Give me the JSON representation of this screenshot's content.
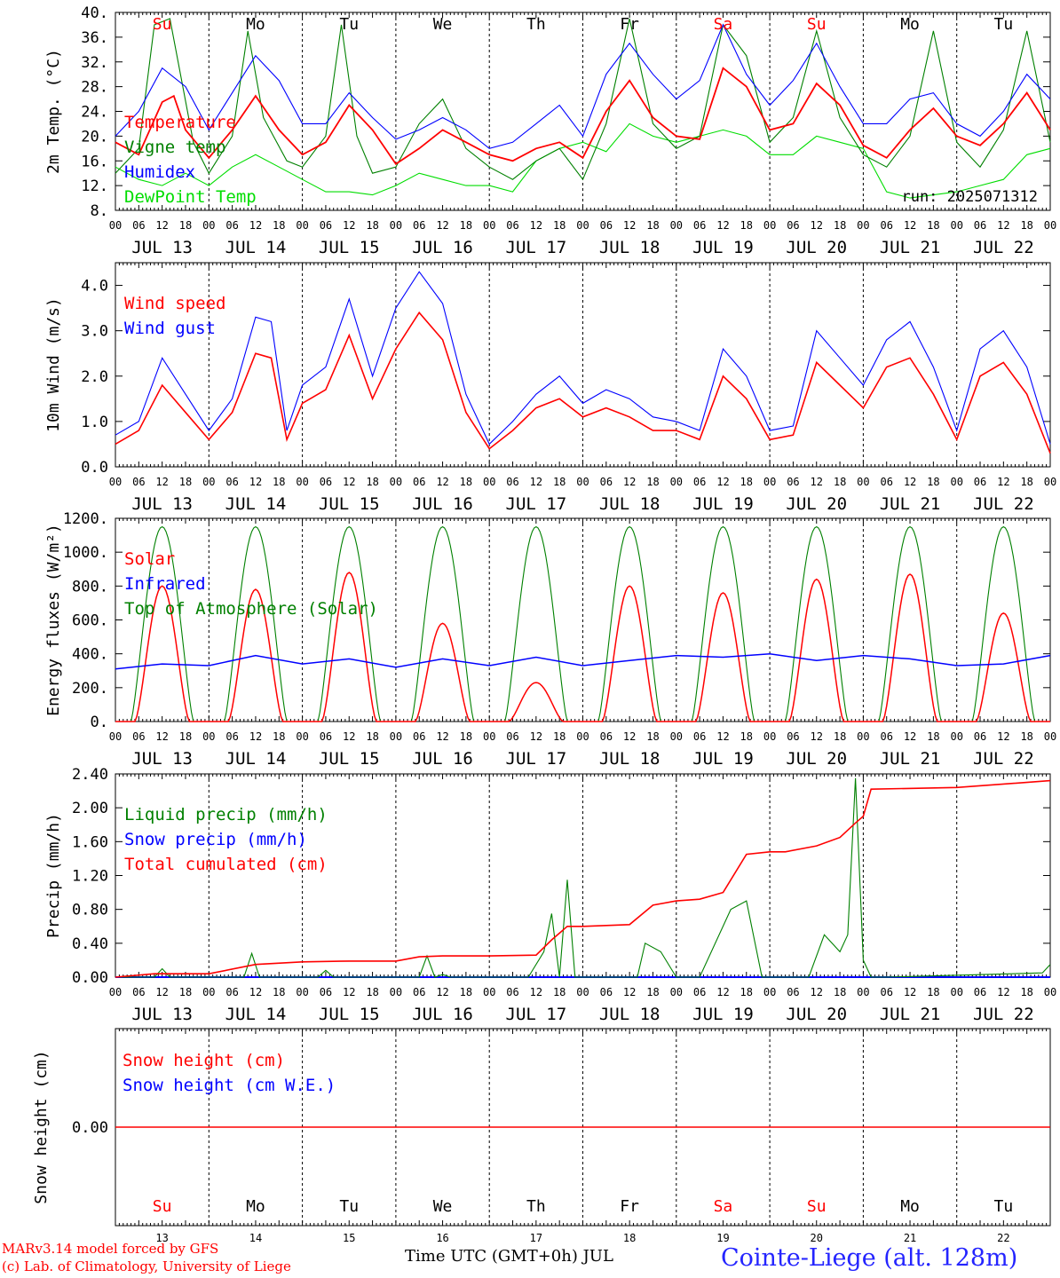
{
  "x_tick_hours": [
    "00",
    "06",
    "12",
    "18"
  ],
  "x_end_tick": "00",
  "days": [
    {
      "date": "JUL 13",
      "dow": "Su",
      "day": "13",
      "weekend": true
    },
    {
      "date": "JUL 14",
      "dow": "Mo",
      "day": "14",
      "weekend": false
    },
    {
      "date": "JUL 15",
      "dow": "Tu",
      "day": "15",
      "weekend": false
    },
    {
      "date": "JUL 16",
      "dow": "We",
      "day": "16",
      "weekend": false
    },
    {
      "date": "JUL 17",
      "dow": "Th",
      "day": "17",
      "weekend": false
    },
    {
      "date": "JUL 18",
      "dow": "Fr",
      "day": "18",
      "weekend": false
    },
    {
      "date": "JUL 19",
      "dow": "Sa",
      "day": "19",
      "weekend": true
    },
    {
      "date": "JUL 20",
      "dow": "Su",
      "day": "20",
      "weekend": true
    },
    {
      "date": "JUL 21",
      "dow": "Mo",
      "day": "21",
      "weekend": false
    },
    {
      "date": "JUL 22",
      "dow": "Tu",
      "day": "22",
      "weekend": false
    }
  ],
  "colors": {
    "red": "#ff0000",
    "blue": "#0000ff",
    "green": "#008000",
    "lime": "#00dd00",
    "weekday": "#000000"
  },
  "footer": {
    "model": "MARv3.14 model forced by GFS",
    "lab": "(c) Lab. of Climatology, University of Liege",
    "xlabel": "Time UTC (GMT+0h) JUL",
    "station": "Cointe-Liege (alt. 128m)"
  },
  "chart_data": [
    {
      "type": "line",
      "ylabel": "2m Temp. (°C)",
      "ylim": [
        8,
        40
      ],
      "yticks": [
        "8.",
        "12.",
        "16.",
        "20.",
        "24.",
        "28.",
        "32.",
        "36.",
        "40."
      ],
      "annotation": "run: 2025071312",
      "x_unit": "hours since Jul 13 00 UTC",
      "series": [
        {
          "name": "Temperature",
          "color": "#ff0000",
          "x": [
            0,
            6,
            12,
            15,
            18,
            24,
            30,
            36,
            42,
            48,
            54,
            60,
            66,
            72,
            78,
            84,
            90,
            96,
            102,
            108,
            114,
            120,
            126,
            132,
            138,
            144,
            150,
            156,
            162,
            168,
            174,
            180,
            186,
            192,
            198,
            204,
            210,
            216,
            222,
            228,
            234,
            240
          ],
          "y": [
            19,
            17,
            25.5,
            26.5,
            21,
            16.5,
            21,
            26.5,
            21,
            17,
            19,
            25,
            21,
            15.5,
            18,
            21,
            19,
            17,
            16,
            18,
            19,
            16.5,
            24,
            29,
            23,
            20,
            19.5,
            31,
            28,
            21,
            22,
            28.5,
            25,
            18.5,
            16.5,
            21,
            24.5,
            20,
            18.5,
            22,
            27,
            21
          ]
        },
        {
          "name": "Vigne temp",
          "color": "#008000",
          "x": [
            0,
            6,
            10,
            14,
            20,
            24,
            30,
            34,
            38,
            44,
            48,
            54,
            58,
            62,
            66,
            72,
            78,
            84,
            90,
            96,
            102,
            108,
            114,
            120,
            126,
            132,
            138,
            144,
            150,
            156,
            162,
            168,
            174,
            180,
            186,
            192,
            198,
            204,
            210,
            216,
            222,
            228,
            234,
            240
          ],
          "y": [
            14,
            18,
            38,
            39,
            19,
            14,
            20,
            37,
            23,
            16,
            15,
            20,
            38,
            20,
            14,
            15,
            22,
            26,
            18,
            15,
            13,
            16,
            18,
            13,
            22,
            39,
            22,
            18,
            20,
            38,
            33,
            19,
            23,
            37,
            23,
            17,
            15,
            20,
            37,
            19,
            15,
            21,
            37,
            19
          ]
        },
        {
          "name": "Humidex",
          "color": "#0000ff",
          "x": [
            0,
            6,
            12,
            18,
            24,
            30,
            36,
            42,
            48,
            54,
            60,
            66,
            72,
            78,
            84,
            90,
            96,
            102,
            108,
            114,
            120,
            126,
            132,
            138,
            144,
            150,
            156,
            162,
            168,
            174,
            180,
            186,
            192,
            198,
            204,
            210,
            216,
            222,
            228,
            234,
            240
          ],
          "y": [
            20,
            24,
            31,
            28,
            21,
            27,
            33,
            29,
            22,
            22,
            27,
            23,
            19.5,
            21,
            23,
            21,
            18,
            19,
            22,
            25,
            20,
            30,
            35,
            30,
            26,
            29,
            38,
            30,
            25,
            29,
            35,
            28,
            22,
            22,
            26,
            27,
            22,
            20,
            24,
            30,
            26
          ]
        },
        {
          "name": "DewPoint Temp",
          "color": "#00dd00",
          "x": [
            0,
            6,
            12,
            18,
            24,
            30,
            36,
            42,
            48,
            54,
            60,
            66,
            72,
            78,
            84,
            90,
            96,
            102,
            108,
            114,
            120,
            126,
            132,
            138,
            144,
            150,
            156,
            162,
            168,
            174,
            180,
            186,
            192,
            198,
            204,
            210,
            216,
            222,
            228,
            234,
            240
          ],
          "y": [
            15,
            13,
            12,
            14,
            12,
            15,
            17,
            15,
            13,
            11,
            11,
            10.5,
            12,
            14,
            13,
            12,
            12,
            11,
            16,
            18,
            19,
            17.5,
            22,
            20,
            19,
            20,
            21,
            20,
            17,
            17,
            20,
            19,
            18,
            11,
            10,
            10.5,
            11,
            12,
            13,
            17,
            18
          ]
        }
      ]
    },
    {
      "type": "line",
      "ylabel": "10m Wind (m/s)",
      "ylim": [
        0,
        4.5
      ],
      "yticks": [
        "0.0",
        "1.0",
        "2.0",
        "3.0",
        "4.0"
      ],
      "x_unit": "hours since Jul 13 00 UTC",
      "series": [
        {
          "name": "Wind speed",
          "color": "#ff0000",
          "x": [
            0,
            6,
            12,
            18,
            24,
            30,
            36,
            40,
            44,
            48,
            54,
            60,
            66,
            72,
            78,
            84,
            90,
            96,
            102,
            108,
            114,
            120,
            126,
            132,
            138,
            144,
            150,
            156,
            162,
            168,
            174,
            180,
            186,
            192,
            198,
            204,
            210,
            216,
            222,
            228,
            234,
            240
          ],
          "y": [
            0.5,
            0.8,
            1.8,
            1.2,
            0.6,
            1.2,
            2.5,
            2.4,
            0.6,
            1.4,
            1.7,
            2.9,
            1.5,
            2.6,
            3.4,
            2.8,
            1.2,
            0.4,
            0.8,
            1.3,
            1.5,
            1.1,
            1.3,
            1.1,
            0.8,
            0.8,
            0.6,
            2.0,
            1.5,
            0.6,
            0.7,
            2.3,
            1.8,
            1.3,
            2.2,
            2.4,
            1.6,
            0.6,
            2.0,
            2.3,
            1.6,
            0.3
          ]
        },
        {
          "name": "Wind gust",
          "color": "#0000ff",
          "x": [
            0,
            6,
            12,
            18,
            24,
            30,
            36,
            40,
            44,
            48,
            54,
            60,
            66,
            72,
            78,
            84,
            90,
            96,
            102,
            108,
            114,
            120,
            126,
            132,
            138,
            144,
            150,
            156,
            162,
            168,
            174,
            180,
            186,
            192,
            198,
            204,
            210,
            216,
            222,
            228,
            234,
            240
          ],
          "y": [
            0.7,
            1.0,
            2.4,
            1.6,
            0.8,
            1.5,
            3.3,
            3.2,
            0.8,
            1.8,
            2.2,
            3.7,
            2.0,
            3.5,
            4.3,
            3.6,
            1.6,
            0.5,
            1.0,
            1.6,
            2.0,
            1.4,
            1.7,
            1.5,
            1.1,
            1.0,
            0.8,
            2.6,
            2.0,
            0.8,
            0.9,
            3.0,
            2.4,
            1.8,
            2.8,
            3.2,
            2.2,
            0.8,
            2.6,
            3.0,
            2.2,
            0.5
          ]
        }
      ]
    },
    {
      "type": "line",
      "ylabel": "Energy fluxes (W/m²)",
      "ylim": [
        0,
        1200
      ],
      "yticks": [
        "0.",
        "200.",
        "400.",
        "600.",
        "800.",
        "1000.",
        "1200."
      ],
      "x_unit": "hours since Jul 13 00 UTC",
      "series": [
        {
          "name": "Solar",
          "color": "#ff0000",
          "daily_peak": [
            800,
            780,
            880,
            580,
            230,
            800,
            760,
            840,
            870,
            640
          ]
        },
        {
          "name": "Infrared",
          "color": "#0000ff",
          "x": [
            0,
            12,
            24,
            36,
            48,
            60,
            72,
            84,
            96,
            108,
            120,
            132,
            144,
            156,
            168,
            180,
            192,
            204,
            216,
            228,
            240
          ],
          "y": [
            310,
            340,
            330,
            390,
            340,
            370,
            320,
            370,
            330,
            380,
            330,
            360,
            390,
            380,
            400,
            360,
            390,
            370,
            330,
            340,
            390
          ]
        },
        {
          "name": "Top of Atmosphere (Solar)",
          "color": "#008000",
          "daily_peak": 1150
        }
      ]
    },
    {
      "type": "line",
      "ylabel": "Precip (mm/h)",
      "ylim": [
        0,
        2.4
      ],
      "yticks": [
        "0.00",
        "0.40",
        "0.80",
        "1.20",
        "1.60",
        "2.00",
        "2.40"
      ],
      "x_unit": "hours since Jul 13 00 UTC",
      "series": [
        {
          "name": "Liquid precip (mm/h)",
          "color": "#008000",
          "x": [
            0,
            10,
            12,
            14,
            16,
            33,
            35,
            37,
            48,
            52,
            54,
            56,
            78,
            80,
            82,
            84,
            86,
            106,
            110,
            112,
            114,
            116,
            118,
            120,
            134,
            136,
            140,
            144,
            150,
            158,
            162,
            166,
            168,
            178,
            182,
            186,
            188,
            190,
            192,
            194,
            198,
            238,
            240
          ],
          "y": [
            0,
            0,
            0.1,
            0,
            0,
            0,
            0.28,
            0,
            0,
            0,
            0.08,
            0,
            0,
            0.25,
            0,
            0.03,
            0,
            0,
            0.3,
            0.75,
            0,
            1.15,
            0,
            0,
            0,
            0.4,
            0.3,
            0,
            0,
            0.8,
            0.9,
            0,
            0,
            0,
            0.5,
            0.3,
            0.5,
            2.35,
            0.2,
            0,
            0,
            0.05,
            0.15
          ]
        },
        {
          "name": "Snow precip (mm/h)",
          "color": "#0000ff",
          "x": [
            0,
            240
          ],
          "y": [
            0,
            0
          ]
        },
        {
          "name": "Total cumulated (cm)",
          "color": "#ff0000",
          "x": [
            0,
            10,
            24,
            36,
            48,
            60,
            72,
            78,
            84,
            96,
            108,
            112,
            116,
            120,
            132,
            138,
            144,
            150,
            156,
            162,
            168,
            172,
            180,
            186,
            190,
            192,
            194,
            216,
            240
          ],
          "y": [
            0,
            0.04,
            0.04,
            0.15,
            0.18,
            0.19,
            0.19,
            0.24,
            0.25,
            0.25,
            0.26,
            0.44,
            0.6,
            0.6,
            0.62,
            0.85,
            0.9,
            0.92,
            1.0,
            1.45,
            1.48,
            1.48,
            1.55,
            1.65,
            1.82,
            1.9,
            2.22,
            2.24,
            2.32
          ]
        }
      ]
    },
    {
      "type": "line",
      "ylabel": "Snow height (cm)",
      "yticks": [
        "0.00"
      ],
      "x_unit": "hours since Jul 13 00 UTC",
      "series": [
        {
          "name": "Snow height (cm)",
          "color": "#ff0000",
          "x": [
            0,
            240
          ],
          "y": [
            0,
            0
          ]
        },
        {
          "name": "Snow height (cm W.E.)",
          "color": "#0000ff",
          "x": [
            0,
            240
          ],
          "y": [
            0,
            0
          ]
        }
      ]
    }
  ]
}
